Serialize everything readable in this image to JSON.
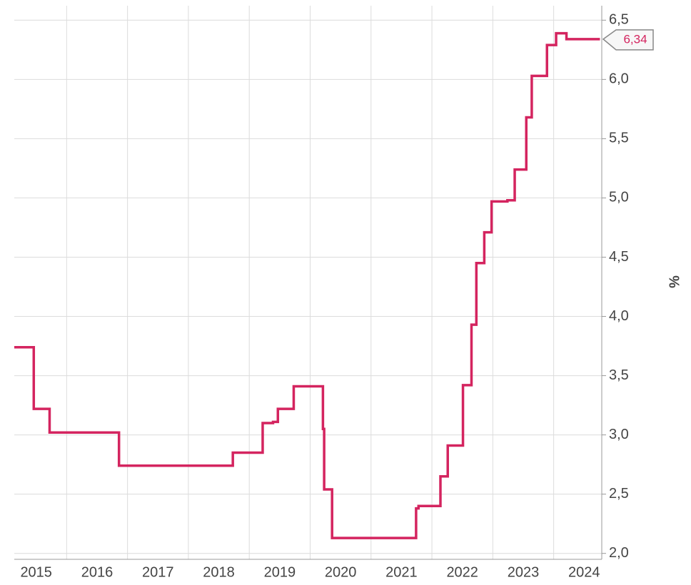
{
  "chart_data": {
    "type": "line",
    "y_label": "%",
    "x": [
      2015.14,
      2015.46,
      2015.72,
      2016.86,
      2018.73,
      2019.22,
      2019.39,
      2019.47,
      2019.73,
      2020.21,
      2020.23,
      2020.36,
      2021.74,
      2021.78,
      2022.14,
      2022.26,
      2022.51,
      2022.65,
      2022.73,
      2022.86,
      2022.98,
      2023.24,
      2023.36,
      2023.55,
      2023.64,
      2023.89,
      2024.04,
      2024.21,
      2024.76
    ],
    "series": [
      {
        "color": "#d4245f",
        "values": [
          3.74,
          3.22,
          3.02,
          2.74,
          2.85,
          3.1,
          3.11,
          3.22,
          3.41,
          3.05,
          2.54,
          2.13,
          2.38,
          2.4,
          2.65,
          2.91,
          3.42,
          3.93,
          4.45,
          4.71,
          4.97,
          4.98,
          5.24,
          5.68,
          6.03,
          6.29,
          6.39,
          6.34,
          6.34
        ]
      }
    ],
    "step": true,
    "xlim": [
      2015.14,
      2024.79
    ],
    "xticks": [
      {
        "value": 2015,
        "label": "2015"
      },
      {
        "value": 2016,
        "label": "2016"
      },
      {
        "value": 2017,
        "label": "2017"
      },
      {
        "value": 2018,
        "label": "2018"
      },
      {
        "value": 2019,
        "label": "2019"
      },
      {
        "value": 2020,
        "label": "2020"
      },
      {
        "value": 2021,
        "label": "2021"
      },
      {
        "value": 2022,
        "label": "2022"
      },
      {
        "value": 2023,
        "label": "2023"
      },
      {
        "value": 2024,
        "label": "2024"
      }
    ],
    "ylim": [
      1.95,
      6.55
    ],
    "yticks": [
      {
        "value": 2.0,
        "label": "2,0"
      },
      {
        "value": 2.5,
        "label": "2,5"
      },
      {
        "value": 3.0,
        "label": "3,0"
      },
      {
        "value": 3.5,
        "label": "3,5"
      },
      {
        "value": 4.0,
        "label": "4,0"
      },
      {
        "value": 4.5,
        "label": "4,5"
      },
      {
        "value": 5.0,
        "label": "5,0"
      },
      {
        "value": 5.5,
        "label": "5,5"
      },
      {
        "value": 6.0,
        "label": "6,0"
      },
      {
        "value": 6.5,
        "label": "6,5"
      }
    ],
    "grid": true,
    "annotations": [
      {
        "text": "6,34",
        "value": 6.34
      }
    ]
  }
}
